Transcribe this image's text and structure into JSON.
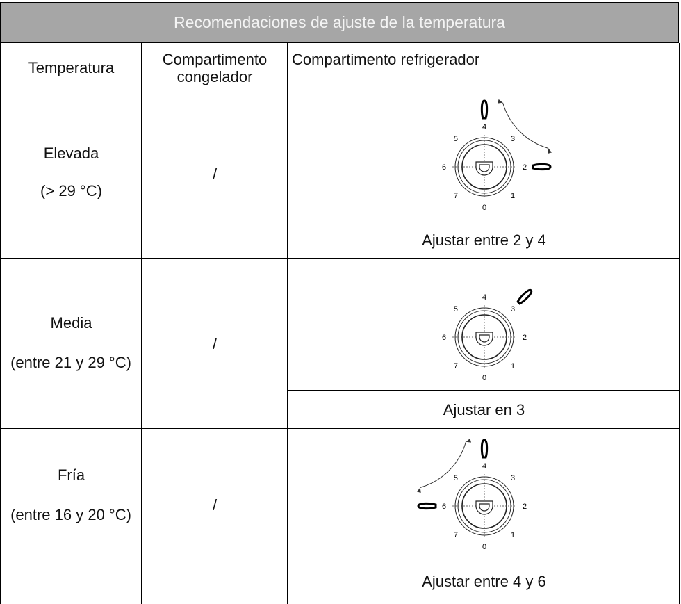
{
  "header": {
    "title": "Recomendaciones de ajuste de la temperatura"
  },
  "table": {
    "columns": [
      "Temperatura",
      "Compartimento congelador",
      "Compartimento refrigerador"
    ],
    "dial_numbers": [
      "0",
      "1",
      "2",
      "3",
      "4",
      "5",
      "6",
      "7"
    ],
    "rows": [
      {
        "temperature": "Elevada",
        "range": "(> 29 °C)",
        "freezer": "/",
        "instruction": "Ajustar entre 2 y 4"
      },
      {
        "temperature": "Media",
        "range": "(entre 21 y 29 °C)",
        "freezer": "/",
        "instruction": "Ajustar en 3"
      },
      {
        "temperature": "Fría",
        "range": "(entre 16 y 20 °C)",
        "freezer": "/",
        "instruction": "Ajustar entre 4 y 6"
      }
    ]
  }
}
